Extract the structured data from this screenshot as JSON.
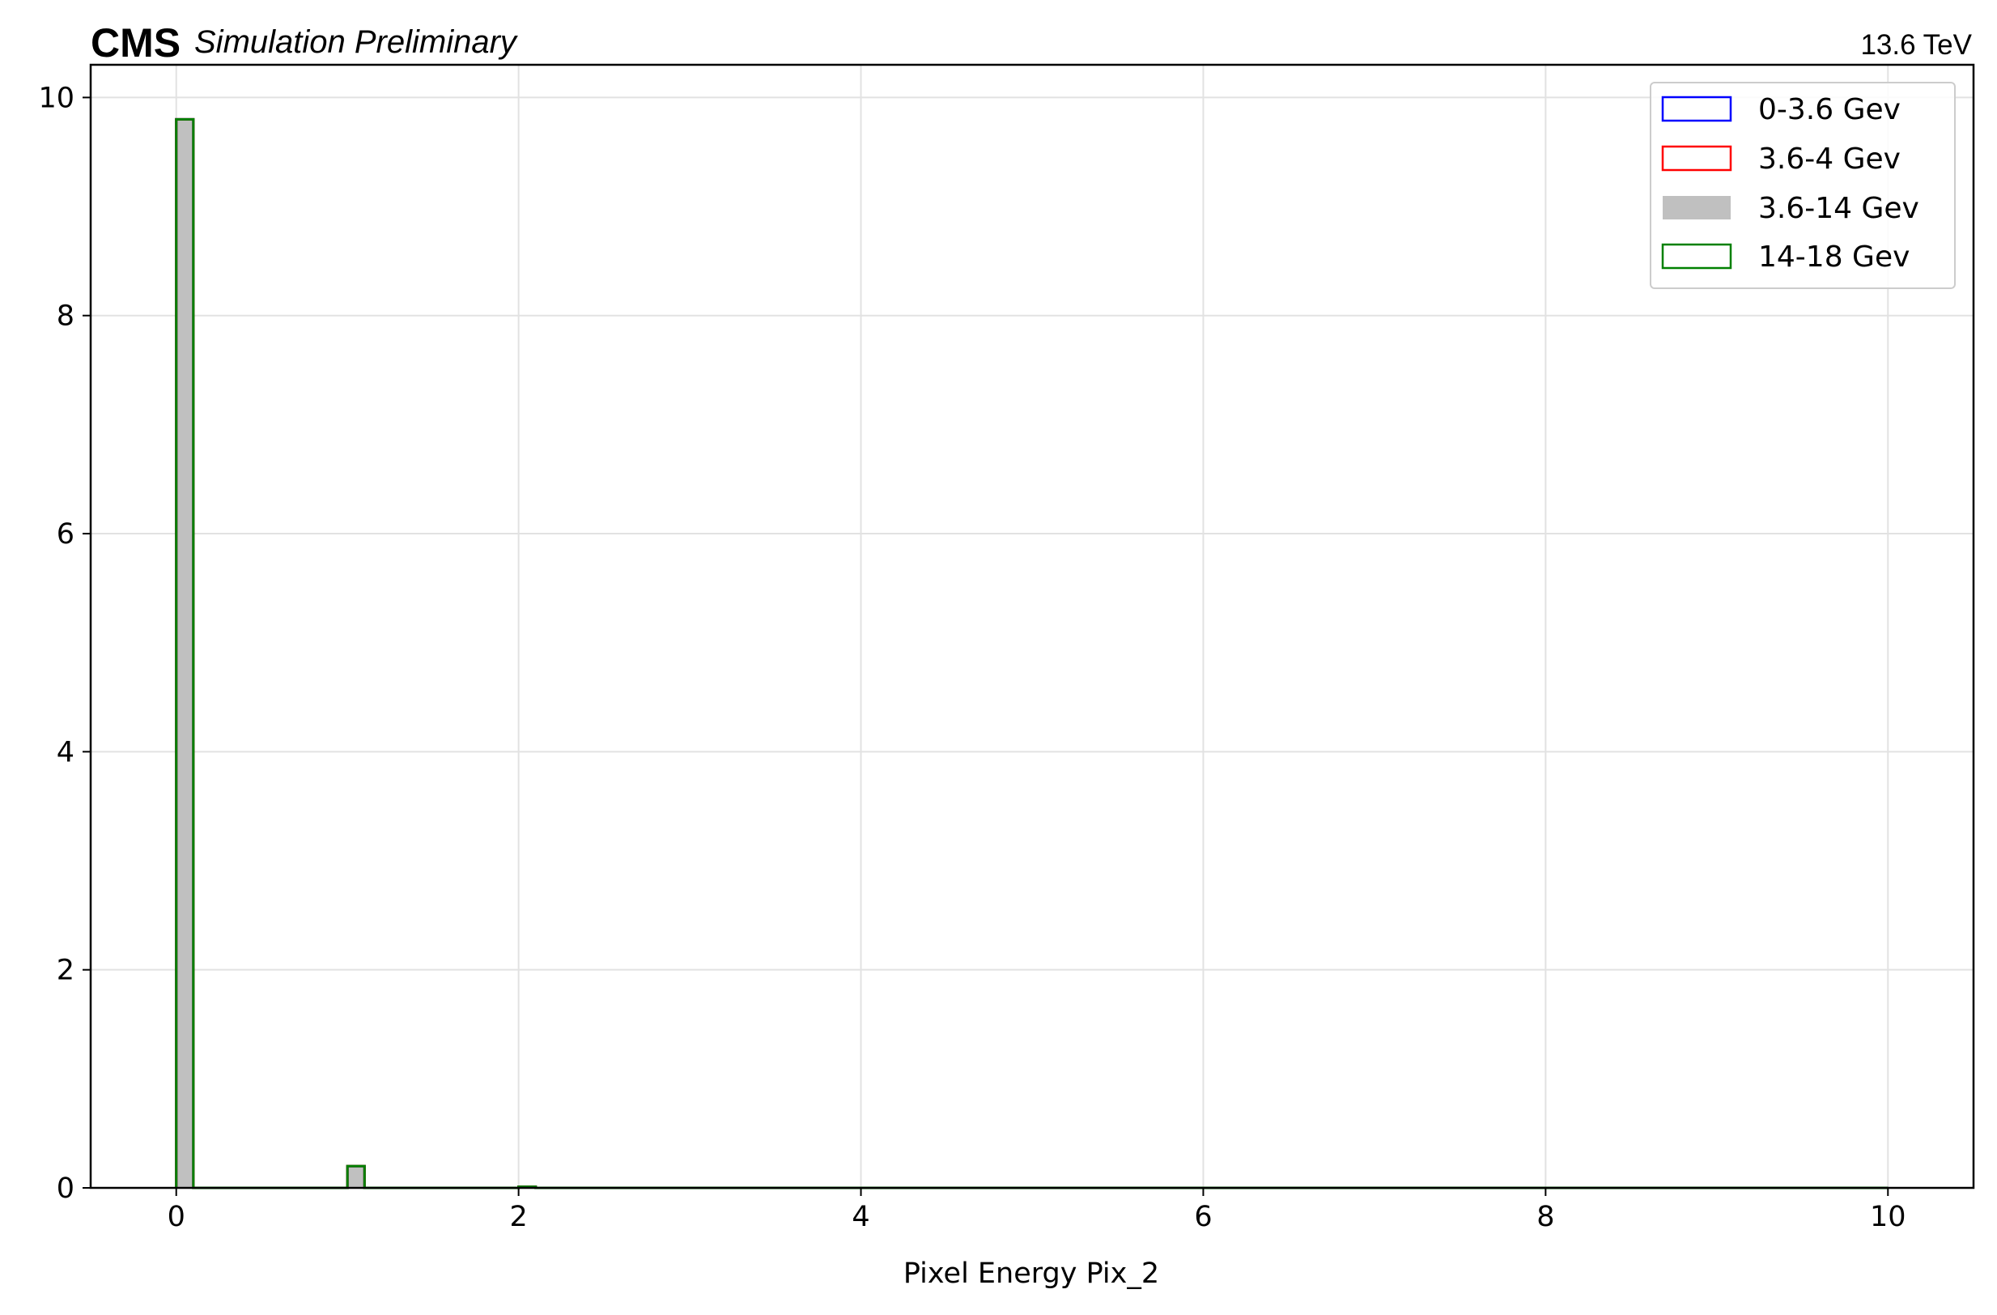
{
  "header": {
    "experiment": "CMS",
    "status": "Simulation Preliminary",
    "energy": "13.6 TeV"
  },
  "chart_data": {
    "type": "histogram",
    "xlabel": "Pixel Energy Pix_2",
    "ylabel": "",
    "xlim": [
      -0.5,
      10.5
    ],
    "ylim": [
      0,
      10.3
    ],
    "xticks": [
      0,
      2,
      4,
      6,
      8,
      10
    ],
    "yticks": [
      0,
      2,
      4,
      6,
      8,
      10
    ],
    "grid": true,
    "legend_position": "top-right",
    "bin_edges": [
      0.0,
      0.1,
      1.0,
      1.1,
      2.0,
      2.1,
      10.0
    ],
    "series": [
      {
        "name": "0-3.6 Gev",
        "style": "step",
        "color": "#0000ff",
        "values": [
          9.8,
          0,
          0.2,
          0,
          0.01,
          0
        ]
      },
      {
        "name": "3.6-4 Gev",
        "style": "step",
        "color": "#ff0000",
        "values": [
          9.8,
          0,
          0.2,
          0,
          0.01,
          0
        ]
      },
      {
        "name": "3.6-14 Gev",
        "style": "filled",
        "color": "#c0c0c0",
        "values": [
          9.8,
          0,
          0.2,
          0,
          0.01,
          0
        ]
      },
      {
        "name": "14-18 Gev",
        "style": "step",
        "color": "#008000",
        "values": [
          9.8,
          0,
          0.2,
          0,
          0.01,
          0
        ]
      }
    ]
  }
}
